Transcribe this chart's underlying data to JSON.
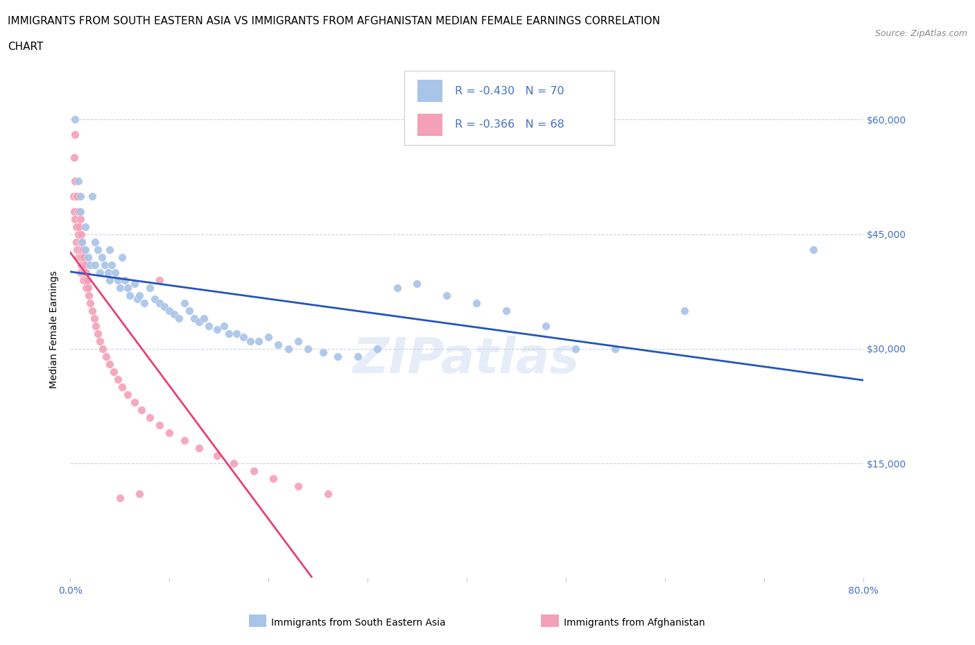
{
  "title_line1": "IMMIGRANTS FROM SOUTH EASTERN ASIA VS IMMIGRANTS FROM AFGHANISTAN MEDIAN FEMALE EARNINGS CORRELATION",
  "title_line2": "CHART",
  "source_text": "Source: ZipAtlas.com",
  "ylabel": "Median Female Earnings",
  "series1_label": "Immigrants from South Eastern Asia",
  "series2_label": "Immigrants from Afghanistan",
  "series1_color": "#a8c4e8",
  "series2_color": "#f4a0b8",
  "series1_line_color": "#2255bb",
  "series2_line_color": "#e84070",
  "R1": -0.43,
  "N1": 70,
  "R2": -0.366,
  "N2": 68,
  "xlim": [
    0,
    0.8
  ],
  "ylim": [
    0,
    65000
  ],
  "yticks": [
    15000,
    30000,
    45000,
    60000
  ],
  "ytick_labels": [
    "$15,000",
    "$30,000",
    "$45,000",
    "$60,000"
  ],
  "xticks": [
    0.0,
    0.1,
    0.2,
    0.3,
    0.4,
    0.5,
    0.6,
    0.7,
    0.8
  ],
  "xtick_labels": [
    "0.0%",
    "",
    "",
    "",
    "",
    "",
    "",
    "",
    "80.0%"
  ],
  "watermark": "ZIPatlas",
  "axis_color": "#4472c4",
  "grid_color": "#c8d4e8",
  "title_fontsize": 11,
  "label_fontsize": 10,
  "tick_fontsize": 10,
  "background_color": "#ffffff",
  "sea_x": [
    0.005,
    0.008,
    0.01,
    0.01,
    0.012,
    0.015,
    0.015,
    0.018,
    0.02,
    0.022,
    0.025,
    0.025,
    0.028,
    0.03,
    0.032,
    0.035,
    0.038,
    0.04,
    0.04,
    0.042,
    0.045,
    0.048,
    0.05,
    0.052,
    0.055,
    0.058,
    0.06,
    0.065,
    0.068,
    0.07,
    0.075,
    0.08,
    0.085,
    0.09,
    0.095,
    0.1,
    0.105,
    0.11,
    0.115,
    0.12,
    0.125,
    0.13,
    0.135,
    0.14,
    0.148,
    0.155,
    0.16,
    0.168,
    0.175,
    0.182,
    0.19,
    0.2,
    0.21,
    0.22,
    0.23,
    0.24,
    0.255,
    0.27,
    0.29,
    0.31,
    0.33,
    0.35,
    0.38,
    0.41,
    0.44,
    0.48,
    0.51,
    0.55,
    0.62,
    0.75
  ],
  "sea_y": [
    60000,
    52000,
    50000,
    48000,
    44000,
    46000,
    43000,
    42000,
    41000,
    50000,
    44000,
    41000,
    43000,
    40000,
    42000,
    41000,
    40000,
    43000,
    39000,
    41000,
    40000,
    39000,
    38000,
    42000,
    39000,
    38000,
    37000,
    38500,
    36500,
    37000,
    36000,
    38000,
    36500,
    36000,
    35500,
    35000,
    34500,
    34000,
    36000,
    35000,
    34000,
    33500,
    34000,
    33000,
    32500,
    33000,
    32000,
    32000,
    31500,
    31000,
    31000,
    31500,
    30500,
    30000,
    31000,
    30000,
    29500,
    29000,
    29000,
    30000,
    38000,
    38500,
    37000,
    36000,
    35000,
    33000,
    30000,
    30000,
    35000,
    43000
  ],
  "afg_x": [
    0.003,
    0.004,
    0.004,
    0.005,
    0.005,
    0.005,
    0.006,
    0.006,
    0.006,
    0.007,
    0.007,
    0.007,
    0.008,
    0.008,
    0.008,
    0.009,
    0.009,
    0.01,
    0.01,
    0.01,
    0.01,
    0.011,
    0.011,
    0.011,
    0.012,
    0.012,
    0.012,
    0.013,
    0.013,
    0.013,
    0.014,
    0.014,
    0.015,
    0.015,
    0.016,
    0.016,
    0.017,
    0.018,
    0.019,
    0.02,
    0.022,
    0.024,
    0.026,
    0.028,
    0.03,
    0.033,
    0.036,
    0.04,
    0.044,
    0.048,
    0.052,
    0.058,
    0.065,
    0.072,
    0.08,
    0.09,
    0.1,
    0.115,
    0.13,
    0.148,
    0.165,
    0.185,
    0.205,
    0.23,
    0.26,
    0.05,
    0.07,
    0.09
  ],
  "afg_y": [
    50000,
    55000,
    48000,
    58000,
    52000,
    47000,
    50000,
    46000,
    44000,
    50000,
    46000,
    43000,
    48000,
    45000,
    42000,
    46000,
    43000,
    47000,
    44000,
    42000,
    40000,
    45000,
    43000,
    41000,
    44000,
    42000,
    40000,
    43000,
    41000,
    39000,
    42000,
    40000,
    41000,
    39000,
    40000,
    38000,
    39000,
    38000,
    37000,
    36000,
    35000,
    34000,
    33000,
    32000,
    31000,
    30000,
    29000,
    28000,
    27000,
    26000,
    25000,
    24000,
    23000,
    22000,
    21000,
    20000,
    19000,
    18000,
    17000,
    16000,
    15000,
    14000,
    13000,
    12000,
    11000,
    10500,
    11000,
    39000
  ]
}
